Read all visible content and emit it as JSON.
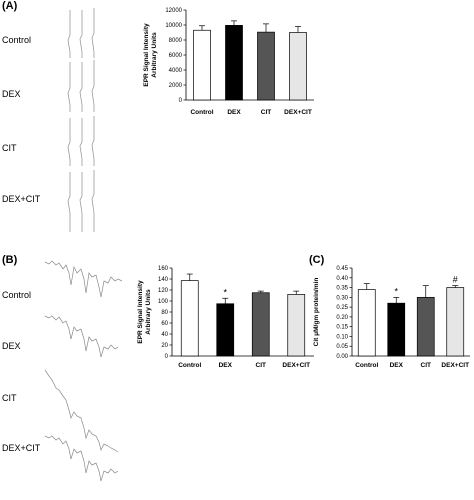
{
  "panels": {
    "a": {
      "label": "(A)",
      "spectrum_labels": [
        "Control",
        "DEX",
        "CIT",
        "DEX+CIT"
      ]
    },
    "b": {
      "label": "(B)",
      "spectrum_labels": [
        "Control",
        "DEX",
        "CIT",
        "DEX+CIT"
      ]
    },
    "c": {
      "label": "(C)"
    }
  },
  "chart_data": [
    {
      "id": "A",
      "type": "bar",
      "categories": [
        "Control",
        "DEX",
        "CIT",
        "DEX+CIT"
      ],
      "values": [
        9300,
        9950,
        9050,
        9000
      ],
      "errors": [
        600,
        600,
        1100,
        800
      ],
      "significance": [
        "",
        "",
        "",
        ""
      ],
      "bar_colors": [
        "#ffffff",
        "#000000",
        "#555555",
        "#e6e6e6"
      ],
      "ylabel": "EPR Signal Intensity\nArbitrary Units",
      "ylim": [
        0,
        12000
      ],
      "yticks": [
        0,
        2000,
        4000,
        6000,
        8000,
        10000,
        12000
      ],
      "grid": false
    },
    {
      "id": "B",
      "type": "bar",
      "categories": [
        "Control",
        "DEX",
        "CIT",
        "DEX+CIT"
      ],
      "values": [
        137,
        95,
        115,
        112
      ],
      "errors": [
        12,
        10,
        3,
        6
      ],
      "significance": [
        "",
        "*",
        "",
        ""
      ],
      "bar_colors": [
        "#ffffff",
        "#000000",
        "#555555",
        "#e6e6e6"
      ],
      "ylabel": "EPR Signal Intensity\nArbitrary Units",
      "ylim": [
        0,
        160
      ],
      "yticks": [
        0,
        20,
        40,
        60,
        80,
        100,
        120,
        140,
        160
      ],
      "grid": false
    },
    {
      "id": "C",
      "type": "bar",
      "categories": [
        "Control",
        "DEX",
        "CIT",
        "DEX+CIT"
      ],
      "values": [
        0.34,
        0.27,
        0.3,
        0.35
      ],
      "errors": [
        0.03,
        0.03,
        0.06,
        0.01
      ],
      "significance": [
        "",
        "*",
        "",
        "#"
      ],
      "bar_colors": [
        "#ffffff",
        "#000000",
        "#555555",
        "#e6e6e6"
      ],
      "ylabel": "Cit μM/gm protein/min",
      "ylim": [
        0,
        0.45
      ],
      "yticks": [
        0,
        0.05,
        0.1,
        0.15,
        0.2,
        0.25,
        0.3,
        0.35,
        0.4,
        0.45
      ],
      "grid": false
    }
  ]
}
